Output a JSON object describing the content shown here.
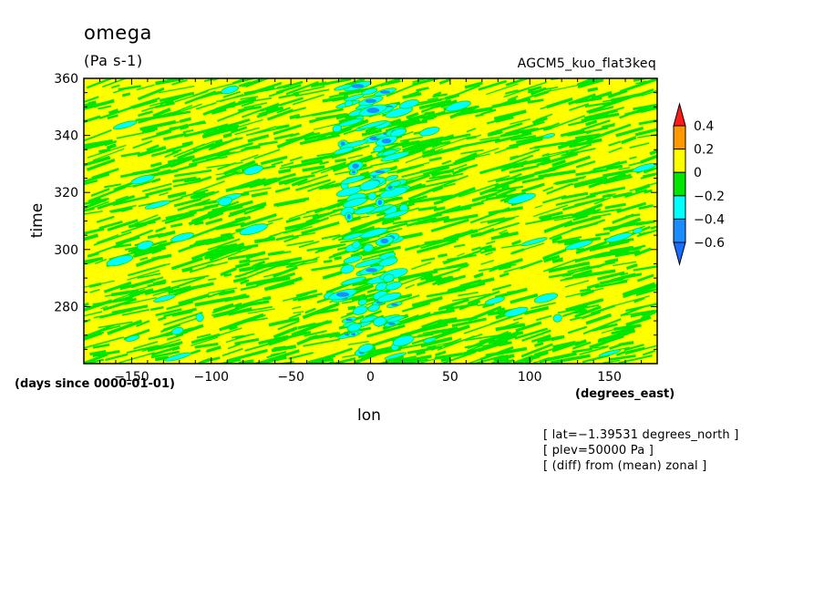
{
  "chart_data": {
    "type": "heatmap",
    "title": "omega",
    "units": "(Pa s-1)",
    "model_label": "AGCM5_kuo_flat3keq",
    "xlabel": "lon",
    "ylabel": "time",
    "x_units": "(degrees_east)",
    "y_units": "(days since 0000-01-01)",
    "xlim": [
      -180,
      180
    ],
    "ylim": [
      260,
      360
    ],
    "x_ticks": [
      -150,
      -100,
      -50,
      0,
      50,
      100,
      150
    ],
    "x_tick_labels": [
      "−150",
      "−100",
      "−50",
      "0",
      "50",
      "100",
      "150"
    ],
    "y_ticks": [
      280,
      300,
      320,
      340,
      360
    ],
    "y_tick_labels": [
      "280",
      "300",
      "320",
      "340",
      "360"
    ],
    "colorbar": {
      "levels": [
        -0.6,
        -0.4,
        -0.2,
        0,
        0.2,
        0.4
      ],
      "labels": [
        "−0.6",
        "−0.4",
        "−0.2",
        "0",
        "0.2",
        "0.4"
      ],
      "colors": [
        "#1a8cff",
        "#00ffff",
        "#00e600",
        "#ffff00",
        "#ff9900",
        "#ff1a1a"
      ],
      "under_color": "#1a6bff",
      "over_color": "#ff1a1a"
    },
    "dominant_value_range": [
      -0.2,
      0.2
    ],
    "annotations": [
      "[ lat=−1.39531 degrees_north ]",
      "[ plev=50000 Pa ]",
      "[ (diff) from (mean) zonal ]"
    ]
  }
}
